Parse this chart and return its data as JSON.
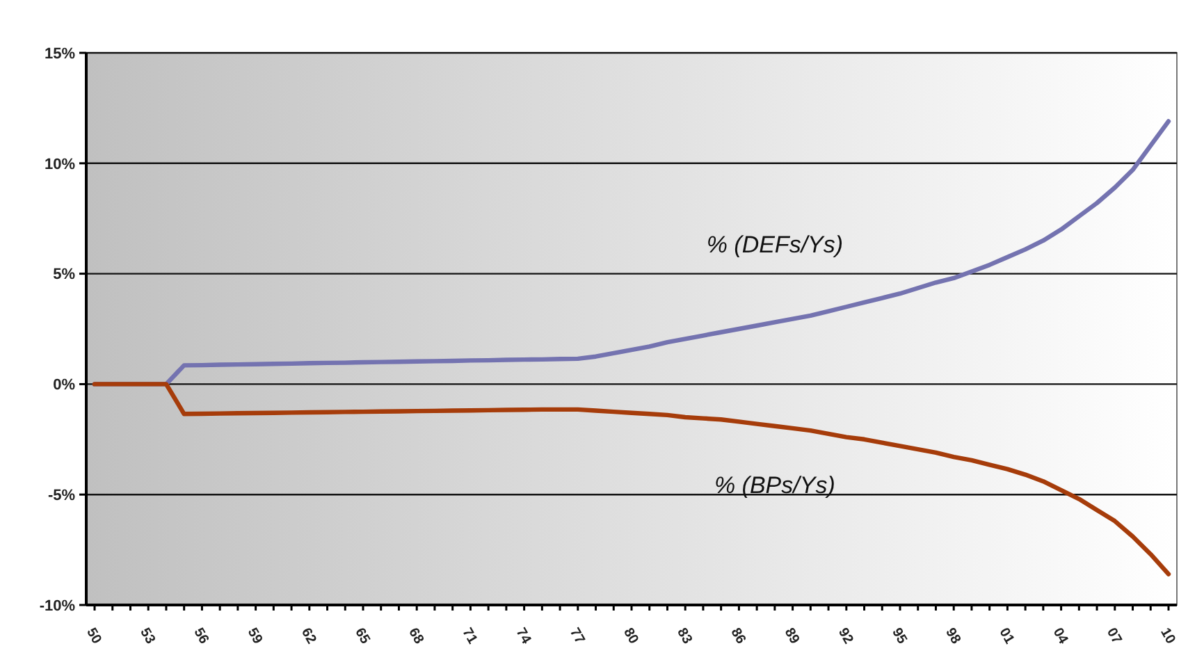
{
  "chart_data": {
    "type": "line",
    "categories": [
      "50",
      null,
      null,
      "53",
      null,
      null,
      "56",
      null,
      null,
      "59",
      null,
      null,
      "62",
      null,
      null,
      "65",
      null,
      null,
      "68",
      null,
      null,
      "71",
      null,
      null,
      "74",
      null,
      null,
      "77",
      null,
      null,
      "80",
      null,
      null,
      "83",
      null,
      null,
      "86",
      null,
      null,
      "89",
      null,
      null,
      "92",
      null,
      null,
      "95",
      null,
      null,
      "98",
      null,
      null,
      "01",
      null,
      null,
      "04",
      null,
      null,
      "07",
      null,
      null,
      "10"
    ],
    "ylim": [
      -10,
      15
    ],
    "yticks": [
      {
        "value": -10,
        "label": "-10%"
      },
      {
        "value": -5,
        "label": "-5%"
      },
      {
        "value": 0,
        "label": "0%"
      },
      {
        "value": 5,
        "label": "5%"
      },
      {
        "value": 10,
        "label": "10%"
      },
      {
        "value": 15,
        "label": "15%"
      }
    ],
    "grid": "y",
    "marker": "none",
    "line_style": "solid",
    "series": [
      {
        "name": "% (DEFs/Ys)",
        "color": "#7473b0",
        "values": [
          0,
          0,
          0,
          0,
          0,
          0.85,
          0.86,
          0.88,
          0.89,
          0.9,
          0.92,
          0.93,
          0.95,
          0.96,
          0.97,
          0.99,
          1.0,
          1.01,
          1.03,
          1.04,
          1.05,
          1.07,
          1.08,
          1.1,
          1.11,
          1.12,
          1.14,
          1.15,
          1.25,
          1.4,
          1.55,
          1.7,
          1.9,
          2.05,
          2.2,
          2.35,
          2.5,
          2.65,
          2.8,
          2.95,
          3.1,
          3.3,
          3.5,
          3.7,
          3.9,
          4.1,
          4.35,
          4.6,
          4.8,
          5.1,
          5.4,
          5.75,
          6.1,
          6.5,
          7.0,
          7.6,
          8.2,
          8.9,
          9.7,
          10.8,
          11.9
        ]
      },
      {
        "name": "% (BPs/Ys)",
        "color": "#a63c0a",
        "values": [
          0,
          0,
          0,
          0,
          0,
          -1.35,
          -1.34,
          -1.33,
          -1.32,
          -1.31,
          -1.3,
          -1.29,
          -1.28,
          -1.27,
          -1.26,
          -1.25,
          -1.24,
          -1.23,
          -1.22,
          -1.21,
          -1.2,
          -1.19,
          -1.18,
          -1.17,
          -1.16,
          -1.15,
          -1.15,
          -1.15,
          -1.2,
          -1.25,
          -1.3,
          -1.35,
          -1.4,
          -1.5,
          -1.55,
          -1.6,
          -1.7,
          -1.8,
          -1.9,
          -2.0,
          -2.1,
          -2.25,
          -2.4,
          -2.5,
          -2.65,
          -2.8,
          -2.95,
          -3.1,
          -3.3,
          -3.45,
          -3.65,
          -3.85,
          -4.1,
          -4.4,
          -4.8,
          -5.2,
          -5.7,
          -6.2,
          -6.9,
          -7.7,
          -8.6
        ]
      }
    ]
  }
}
